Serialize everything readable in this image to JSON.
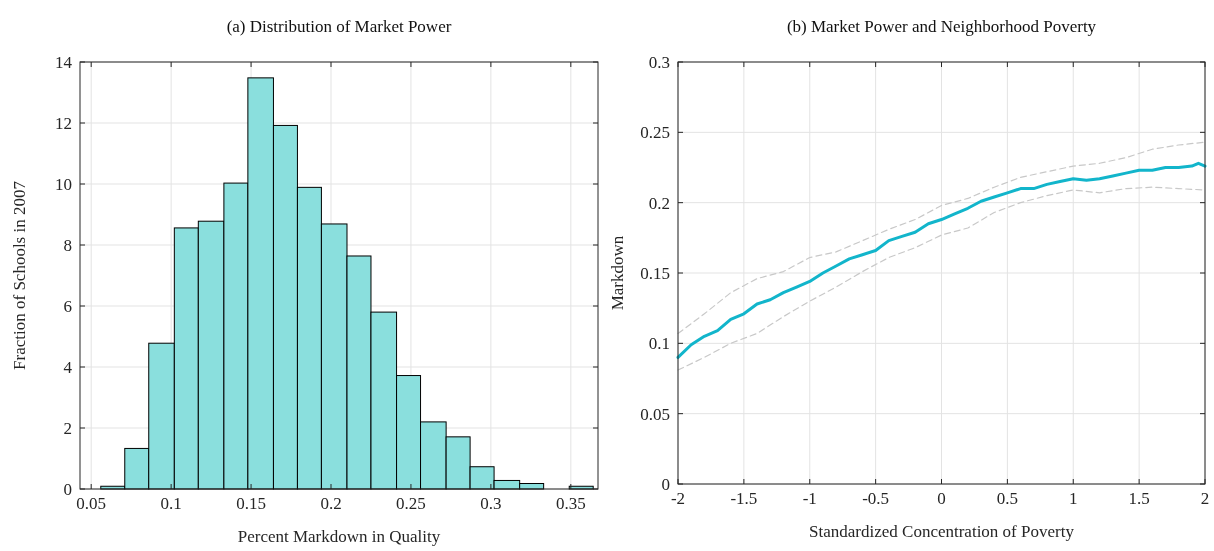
{
  "chart_data": [
    {
      "type": "histogram",
      "title": "(a) Distribution of Market Power",
      "xlabel": "Percent Markdown in Quality",
      "ylabel": "Fraction of Schools in 2007",
      "color": "#8adfdd",
      "grid": true,
      "bins": [
        0.056,
        0.071,
        0.086,
        0.102,
        0.117,
        0.133,
        0.148,
        0.164,
        0.179,
        0.194,
        0.21,
        0.225,
        0.241,
        0.256,
        0.272,
        0.287,
        0.302,
        0.318,
        0.333,
        0.349,
        0.364
      ],
      "values": [
        0.09,
        1.33,
        4.78,
        8.56,
        8.78,
        10.03,
        13.48,
        11.92,
        9.89,
        8.69,
        7.64,
        5.8,
        3.72,
        2.2,
        1.71,
        0.73,
        0.28,
        0.18,
        0,
        0.09
      ],
      "xlim": [
        0.043,
        0.367
      ],
      "xticks": [
        0.05,
        0.1,
        0.15,
        0.2,
        0.25,
        0.3,
        0.35
      ],
      "ylim": [
        0,
        14
      ],
      "yticks": [
        0,
        2,
        4,
        6,
        8,
        10,
        12,
        14
      ]
    },
    {
      "type": "line",
      "title": "(b) Market Power and Neighborhood Poverty",
      "xlabel": "Standardized Concentration of Poverty",
      "ylabel": "Markdown",
      "grid": true,
      "xlim": [
        -2,
        2
      ],
      "xticks": [
        -2,
        -1.5,
        -1,
        -0.5,
        0,
        0.5,
        1,
        1.5,
        2
      ],
      "ylim": [
        0,
        0.3
      ],
      "yticks": [
        0,
        0.05,
        0.1,
        0.15,
        0.2,
        0.25,
        0.3
      ],
      "series": [
        {
          "color": "#c8c8c8",
          "line_style": "dashed",
          "x": [
            -2,
            -1.8,
            -1.6,
            -1.4,
            -1.2,
            -1,
            -0.8,
            -0.6,
            -0.4,
            -0.2,
            0,
            0.2,
            0.4,
            0.6,
            0.8,
            1,
            1.2,
            1.4,
            1.6,
            1.8,
            2
          ],
          "values": [
            0.107,
            0.121,
            0.136,
            0.146,
            0.151,
            0.161,
            0.165,
            0.173,
            0.181,
            0.188,
            0.198,
            0.203,
            0.211,
            0.218,
            0.222,
            0.226,
            0.228,
            0.232,
            0.238,
            0.241,
            0.243
          ]
        },
        {
          "color": "#c8c8c8",
          "line_style": "dashed",
          "x": [
            -2,
            -1.8,
            -1.6,
            -1.4,
            -1.2,
            -1,
            -0.8,
            -0.6,
            -0.4,
            -0.2,
            0,
            0.2,
            0.4,
            0.6,
            0.8,
            1,
            1.2,
            1.4,
            1.6,
            1.8,
            2
          ],
          "values": [
            0.081,
            0.09,
            0.1,
            0.107,
            0.119,
            0.13,
            0.14,
            0.151,
            0.161,
            0.168,
            0.177,
            0.182,
            0.193,
            0.2,
            0.205,
            0.209,
            0.207,
            0.21,
            0.211,
            0.21,
            0.209
          ]
        },
        {
          "color": "#12b5cb",
          "line_style": "solid",
          "x": [
            -2,
            -1.9,
            -1.8,
            -1.7,
            -1.6,
            -1.5,
            -1.4,
            -1.3,
            -1.2,
            -1.1,
            -1,
            -0.9,
            -0.8,
            -0.7,
            -0.6,
            -0.5,
            -0.4,
            -0.3,
            -0.2,
            -0.1,
            0,
            0.1,
            0.2,
            0.3,
            0.4,
            0.5,
            0.6,
            0.7,
            0.8,
            0.9,
            1,
            1.1,
            1.2,
            1.3,
            1.4,
            1.5,
            1.6,
            1.7,
            1.8,
            1.9,
            1.95,
            2
          ],
          "values": [
            0.09,
            0.099,
            0.105,
            0.109,
            0.117,
            0.121,
            0.128,
            0.131,
            0.136,
            0.14,
            0.144,
            0.15,
            0.155,
            0.16,
            0.163,
            0.166,
            0.173,
            0.176,
            0.179,
            0.185,
            0.188,
            0.192,
            0.196,
            0.201,
            0.204,
            0.207,
            0.21,
            0.21,
            0.213,
            0.215,
            0.217,
            0.216,
            0.217,
            0.219,
            0.221,
            0.223,
            0.223,
            0.225,
            0.225,
            0.226,
            0.228,
            0.226
          ]
        }
      ]
    }
  ]
}
